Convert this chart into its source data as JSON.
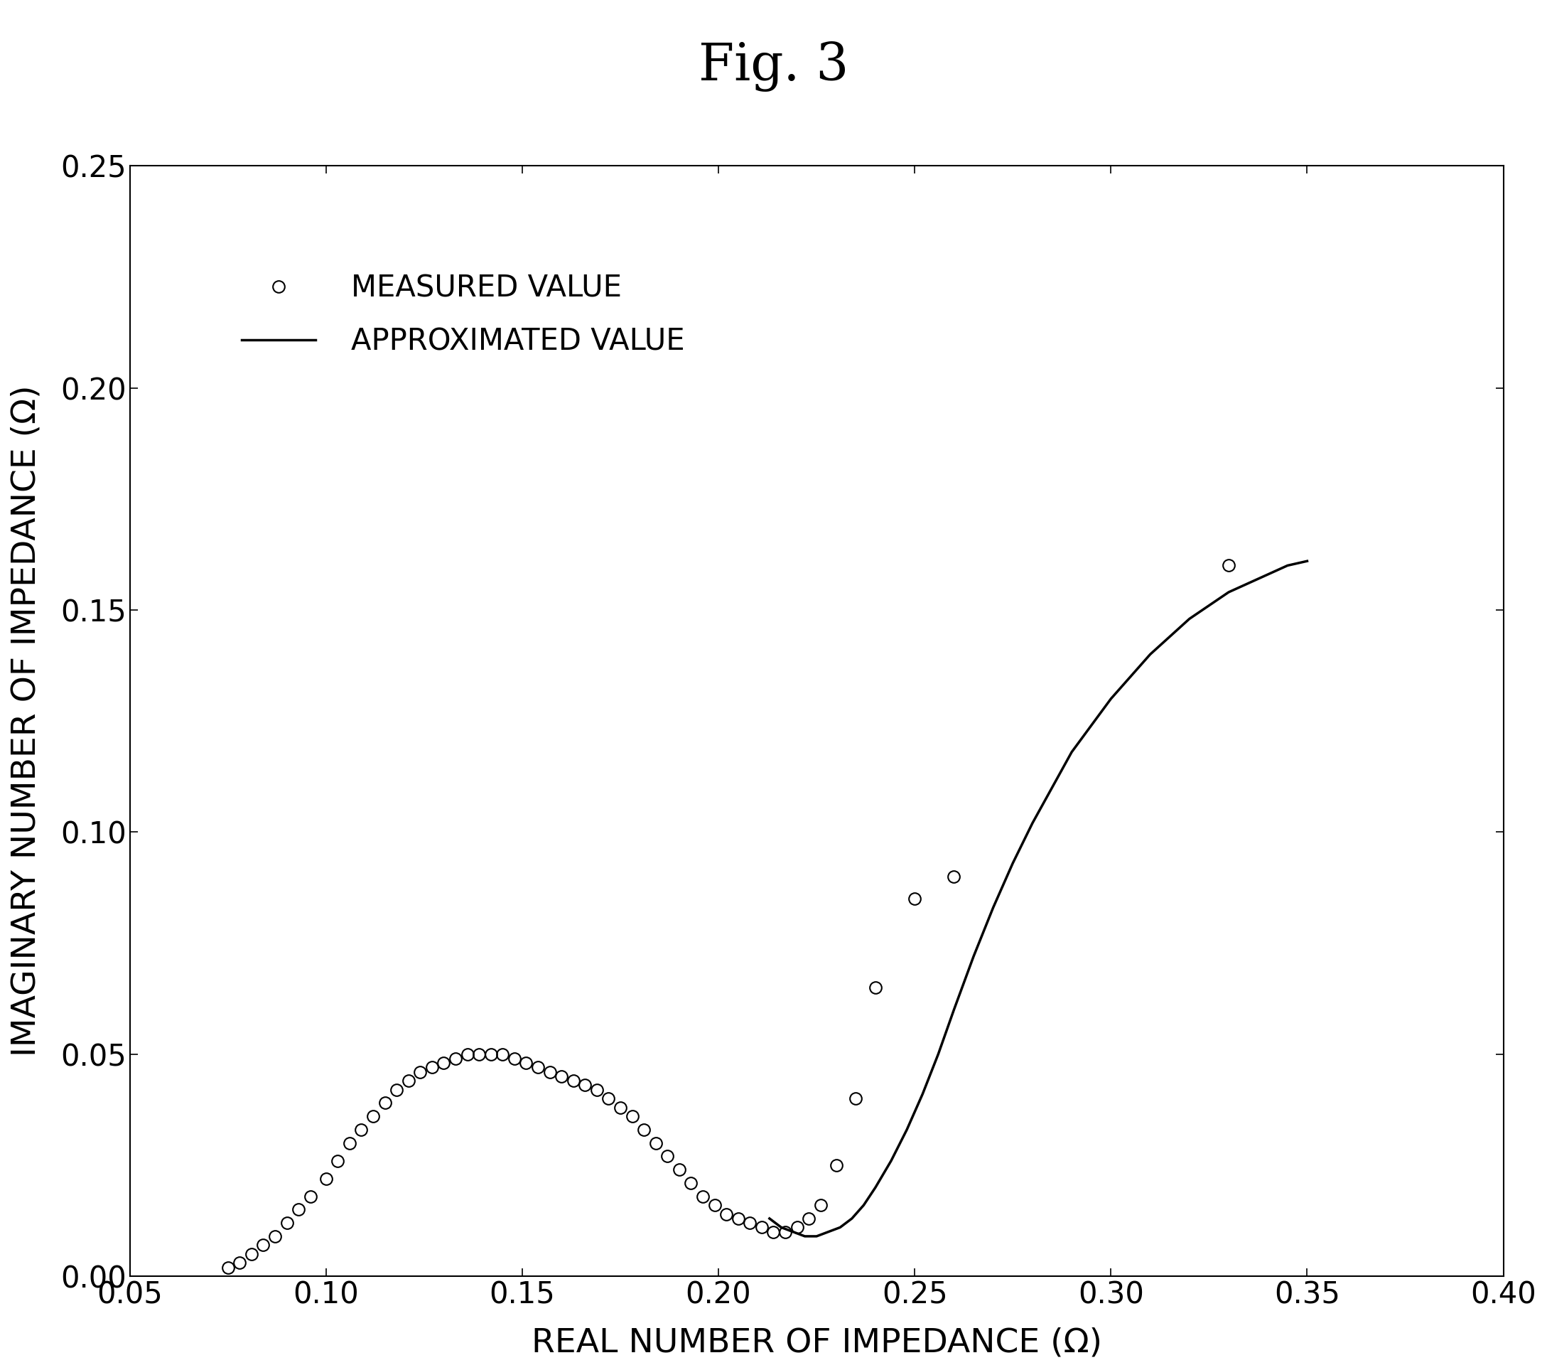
{
  "title": "Fig. 3",
  "xlabel": "REAL NUMBER OF IMPEDANCE (Ω)",
  "ylabel": "IMAGINARY NUMBER OF IMPEDANCE (Ω)",
  "xlim": [
    0.05,
    0.4
  ],
  "ylim": [
    0.0,
    0.25
  ],
  "xticks": [
    0.05,
    0.1,
    0.15,
    0.2,
    0.25,
    0.3,
    0.35,
    0.4
  ],
  "yticks": [
    0.0,
    0.05,
    0.1,
    0.15,
    0.2,
    0.25
  ],
  "measured_x": [
    0.075,
    0.078,
    0.081,
    0.084,
    0.087,
    0.09,
    0.093,
    0.096,
    0.1,
    0.103,
    0.106,
    0.109,
    0.112,
    0.115,
    0.118,
    0.121,
    0.124,
    0.127,
    0.13,
    0.133,
    0.136,
    0.139,
    0.142,
    0.145,
    0.148,
    0.151,
    0.154,
    0.157,
    0.16,
    0.163,
    0.166,
    0.169,
    0.172,
    0.175,
    0.178,
    0.181,
    0.184,
    0.187,
    0.19,
    0.193,
    0.196,
    0.199,
    0.202,
    0.205,
    0.208,
    0.211,
    0.214,
    0.217,
    0.22,
    0.223,
    0.226,
    0.23,
    0.235,
    0.24,
    0.25,
    0.26,
    0.33
  ],
  "measured_y": [
    0.002,
    0.003,
    0.005,
    0.007,
    0.009,
    0.012,
    0.015,
    0.018,
    0.022,
    0.026,
    0.03,
    0.033,
    0.036,
    0.039,
    0.042,
    0.044,
    0.046,
    0.047,
    0.048,
    0.049,
    0.05,
    0.05,
    0.05,
    0.05,
    0.049,
    0.048,
    0.047,
    0.046,
    0.045,
    0.044,
    0.043,
    0.042,
    0.04,
    0.038,
    0.036,
    0.033,
    0.03,
    0.027,
    0.024,
    0.021,
    0.018,
    0.016,
    0.014,
    0.013,
    0.012,
    0.011,
    0.01,
    0.01,
    0.011,
    0.013,
    0.016,
    0.025,
    0.04,
    0.065,
    0.085,
    0.09,
    0.16
  ],
  "approx_x": [
    0.213,
    0.216,
    0.219,
    0.222,
    0.225,
    0.228,
    0.231,
    0.234,
    0.237,
    0.24,
    0.244,
    0.248,
    0.252,
    0.256,
    0.26,
    0.265,
    0.27,
    0.275,
    0.28,
    0.285,
    0.29,
    0.295,
    0.3,
    0.305,
    0.31,
    0.315,
    0.32,
    0.325,
    0.33,
    0.335,
    0.34,
    0.345,
    0.35
  ],
  "approx_y": [
    0.013,
    0.011,
    0.01,
    0.009,
    0.009,
    0.01,
    0.011,
    0.013,
    0.016,
    0.02,
    0.026,
    0.033,
    0.041,
    0.05,
    0.06,
    0.072,
    0.083,
    0.093,
    0.102,
    0.11,
    0.118,
    0.124,
    0.13,
    0.135,
    0.14,
    0.144,
    0.148,
    0.151,
    0.154,
    0.156,
    0.158,
    0.16,
    0.161
  ],
  "legend_measured": "MEASURED VALUE",
  "legend_approx": "APPROXIMATED VALUE",
  "background_color": "#ffffff",
  "data_color": "#000000",
  "title_fontsize": 52,
  "label_fontsize": 34,
  "tick_fontsize": 30,
  "legend_fontsize": 30,
  "marker_size": 12,
  "line_width": 2.5
}
